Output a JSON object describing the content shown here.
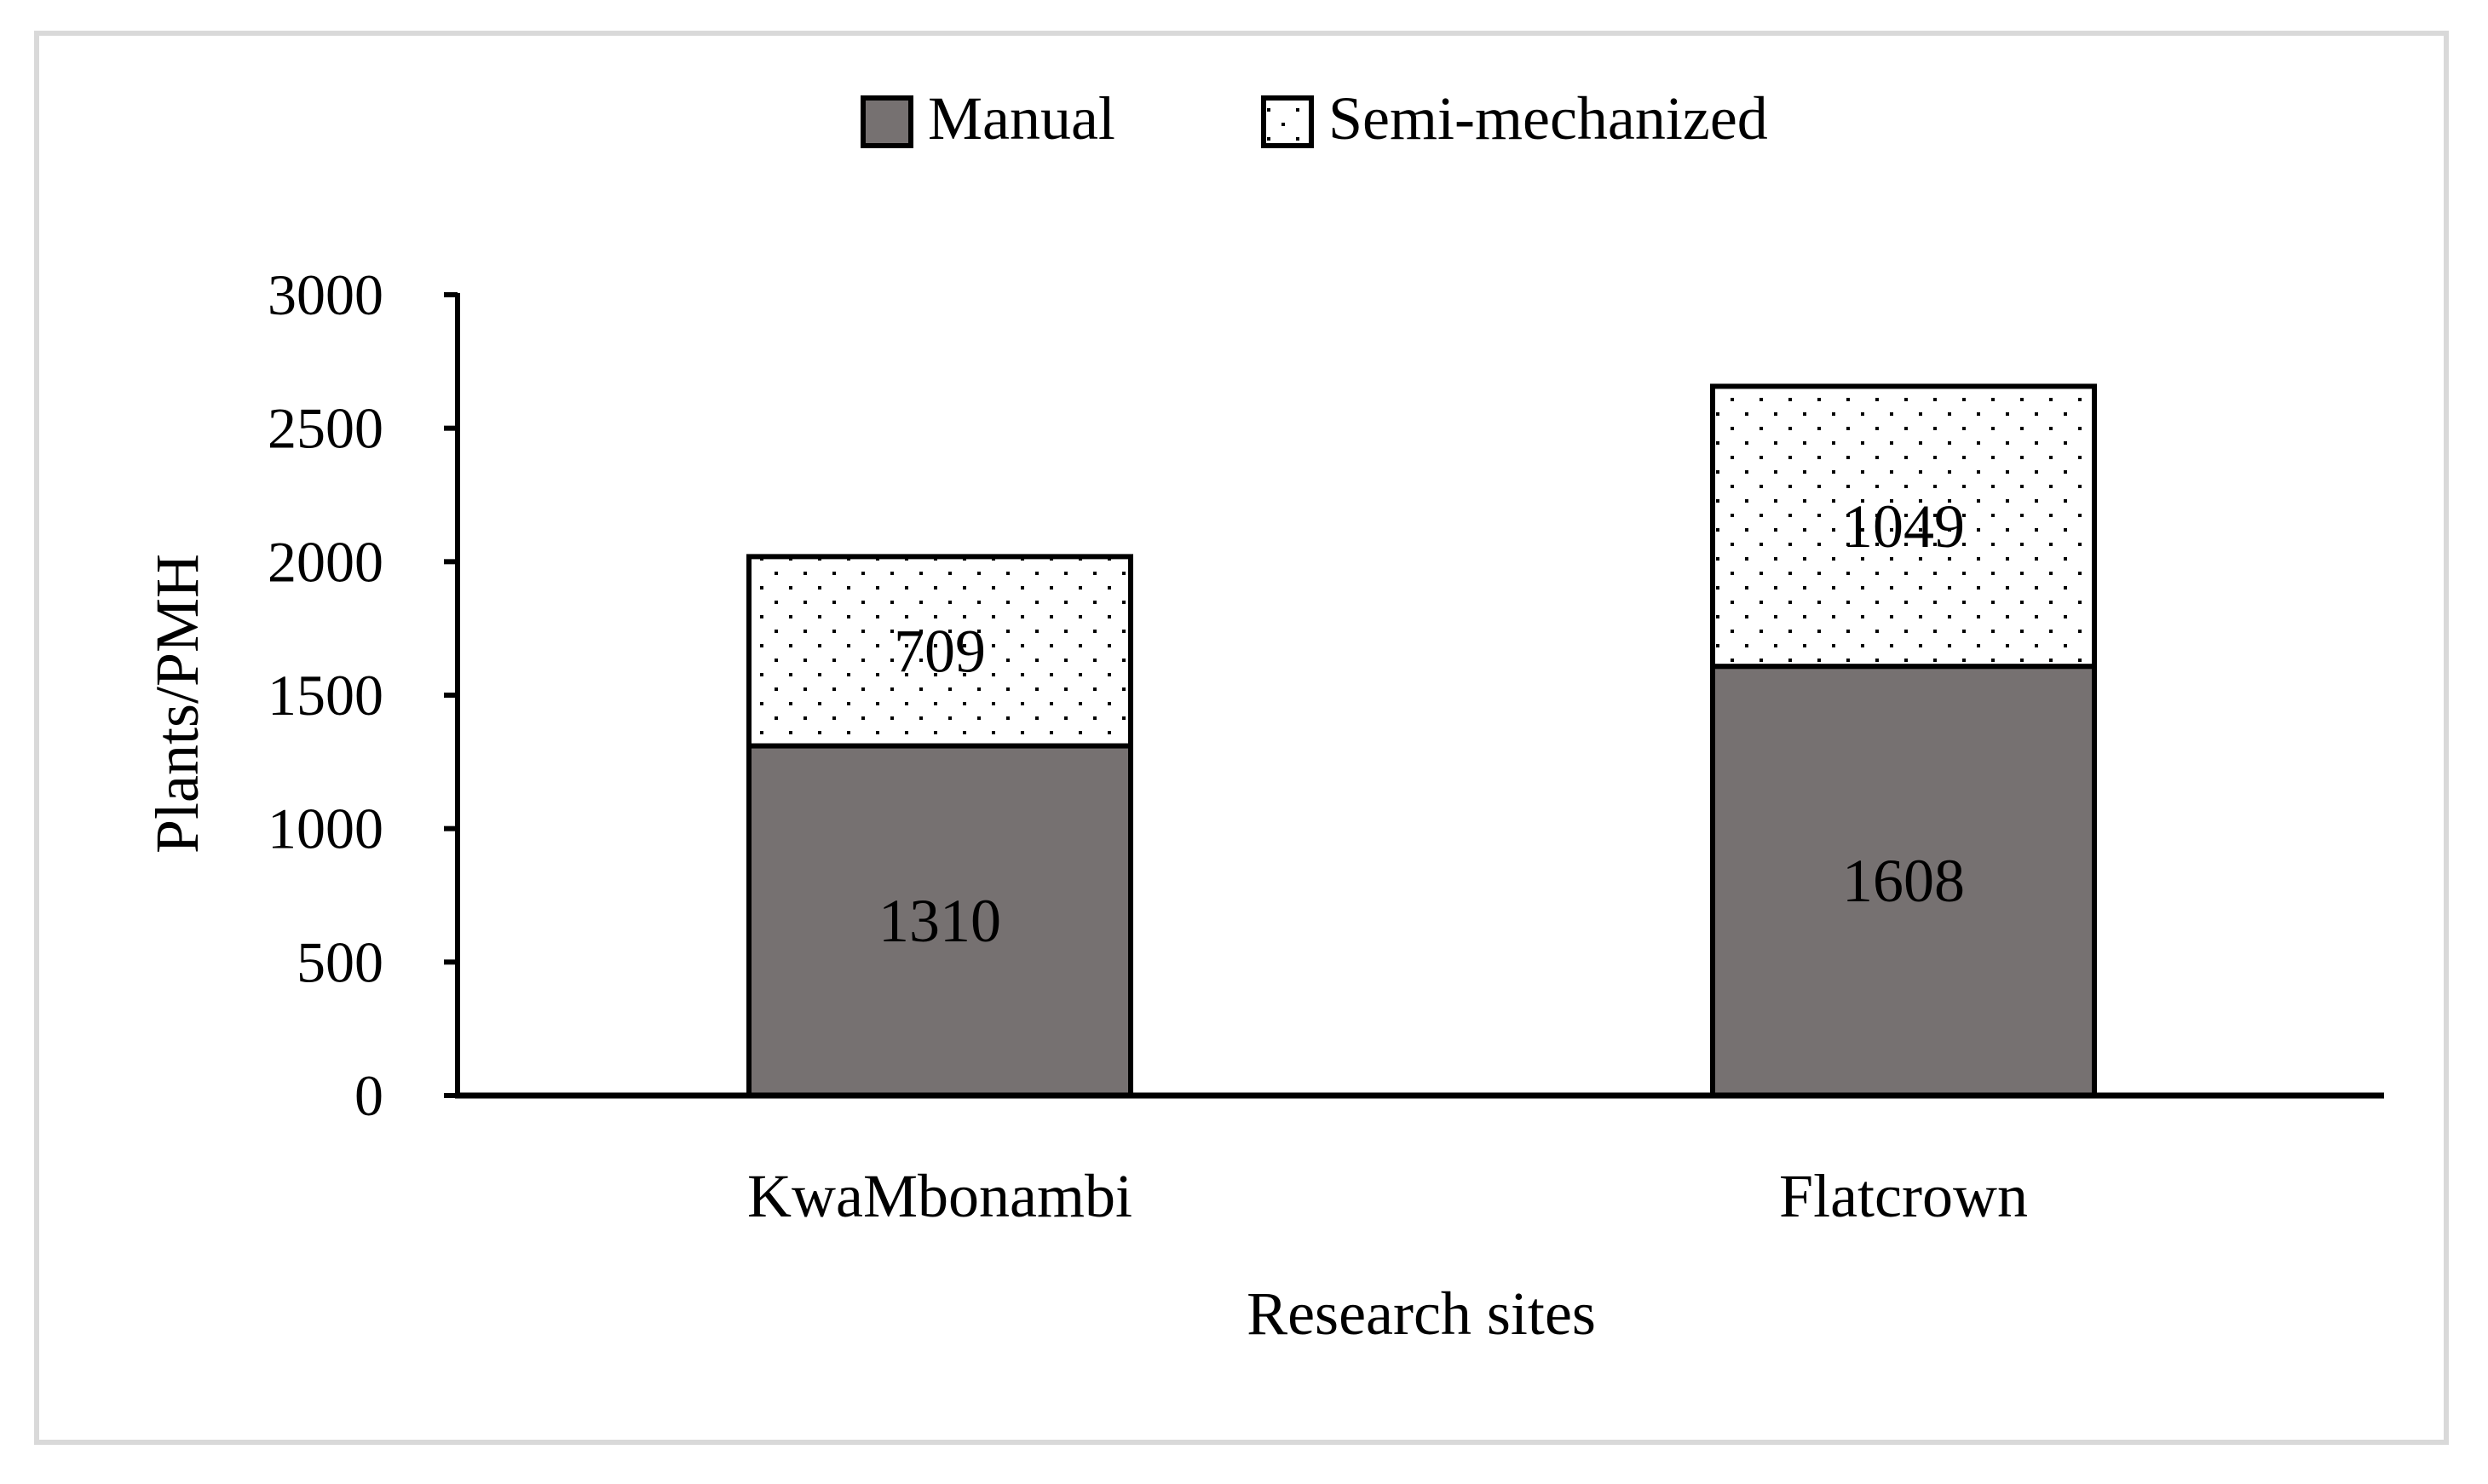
{
  "chart_data": {
    "type": "bar",
    "stacked": true,
    "categories": [
      "KwaMbonambi",
      "Flatcrown"
    ],
    "series": [
      {
        "name": "Manual",
        "values": [
          1310,
          1608
        ],
        "color": "#767171",
        "pattern": "solid"
      },
      {
        "name": "Semi-mechanized",
        "values": [
          709,
          1049
        ],
        "color": "#ffffff",
        "pattern": "dotted"
      }
    ],
    "title": "",
    "xlabel": "Research sites",
    "ylabel": "Plants/PMH",
    "ylim": [
      0,
      3000
    ],
    "yticks": [
      0,
      500,
      1000,
      1500,
      2000,
      2500,
      3000
    ],
    "grid": false,
    "legend_position": "top-center"
  }
}
